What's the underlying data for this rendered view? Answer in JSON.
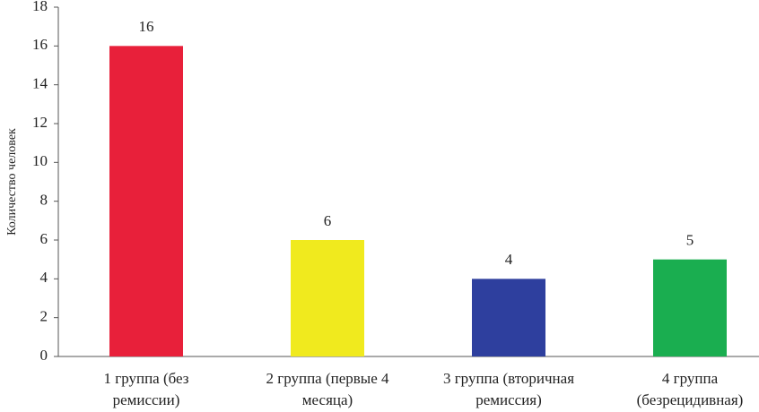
{
  "chart_data": {
    "type": "bar",
    "y_label": "Количество человек",
    "categories": [
      "1 группа (без ремиссии)",
      "2 группа (первые 4 месяца)",
      "3 группа (вторичная ремиссия)",
      "4 группа (безрецидивная)"
    ],
    "values": [
      16,
      6,
      4,
      5
    ],
    "colors": [
      "#e8203a",
      "#f0ea1e",
      "#2e3f9e",
      "#1aae50"
    ],
    "ylim": [
      0,
      18
    ],
    "yticks": [
      0,
      2,
      4,
      6,
      8,
      10,
      12,
      14,
      16,
      18
    ],
    "grid": false
  }
}
